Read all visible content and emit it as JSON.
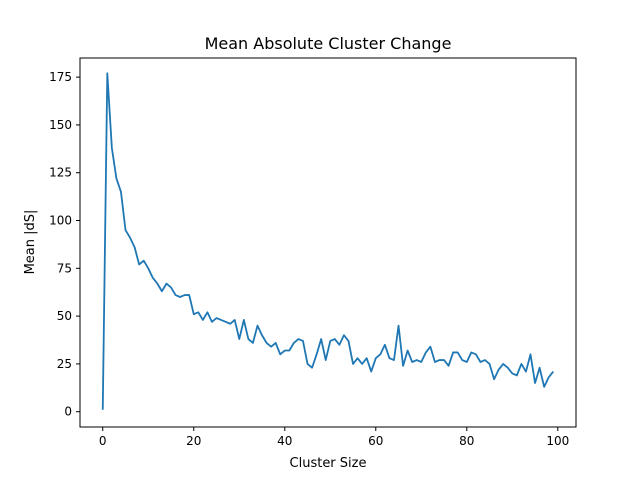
{
  "chart_data": {
    "type": "line",
    "title": "Mean Absolute Cluster Change",
    "xlabel": "Cluster Size",
    "ylabel": "Mean |dS|",
    "xlim": [
      -5,
      104
    ],
    "ylim": [
      -8,
      185
    ],
    "xticks": [
      0,
      20,
      40,
      60,
      80,
      100
    ],
    "yticks": [
      0,
      25,
      50,
      75,
      100,
      125,
      150,
      175
    ],
    "grid": false,
    "series": [
      {
        "color": "#1f77b4",
        "x": [
          0,
          1,
          2,
          3,
          4,
          5,
          6,
          7,
          8,
          9,
          10,
          11,
          12,
          13,
          14,
          15,
          16,
          17,
          18,
          19,
          20,
          21,
          22,
          23,
          24,
          25,
          26,
          27,
          28,
          29,
          30,
          31,
          32,
          33,
          34,
          35,
          36,
          37,
          38,
          39,
          40,
          41,
          42,
          43,
          44,
          45,
          46,
          47,
          48,
          49,
          50,
          51,
          52,
          53,
          54,
          55,
          56,
          57,
          58,
          59,
          60,
          61,
          62,
          63,
          64,
          65,
          66,
          67,
          68,
          69,
          70,
          71,
          72,
          73,
          74,
          75,
          76,
          77,
          78,
          79,
          80,
          81,
          82,
          83,
          84,
          85,
          86,
          87,
          88,
          89,
          90,
          91,
          92,
          93,
          94,
          95,
          96,
          97,
          98,
          99
        ],
        "y": [
          1,
          177,
          138,
          122,
          115,
          95,
          91,
          86,
          77,
          79,
          75,
          70,
          67,
          63,
          67,
          65,
          61,
          60,
          61,
          61,
          51,
          52,
          48,
          52,
          47,
          49,
          48,
          47,
          46,
          48,
          38,
          48,
          38,
          36,
          45,
          40,
          36,
          34,
          36,
          30,
          32,
          32,
          36,
          38,
          37,
          25,
          23,
          30,
          38,
          27,
          37,
          38,
          35,
          40,
          37,
          25,
          28,
          25,
          28,
          21,
          28,
          30,
          35,
          28,
          27,
          45,
          24,
          32,
          26,
          27,
          26,
          31,
          34,
          26,
          27,
          27,
          24,
          31,
          31,
          27,
          26,
          31,
          30,
          26,
          27,
          25,
          17,
          22,
          25,
          23,
          20,
          19,
          25,
          21,
          30,
          15,
          23,
          13,
          18,
          21
        ]
      }
    ]
  }
}
